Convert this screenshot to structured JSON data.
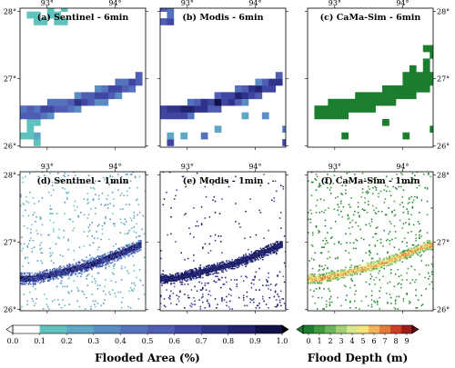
{
  "chart_data": {
    "type": "heatmap",
    "lon_ticks": [
      "93°",
      "94°"
    ],
    "lat_ticks": [
      "28°",
      "27°",
      "26°"
    ],
    "panels": [
      {
        "title": "(a) Sentinel - 6min",
        "resolution": "6min",
        "variable": "Flooded Area (%)"
      },
      {
        "title": "(b) Modis - 6min",
        "resolution": "6min",
        "variable": "Flooded Area (%)"
      },
      {
        "title": "(c) CaMa-Sim - 6min",
        "resolution": "6min",
        "variable": "Flood Depth (m)"
      },
      {
        "title": "(d) Sentinel - 1min",
        "resolution": "1min",
        "variable": "Flooded Area (%)"
      },
      {
        "title": "(e) Modis - 1min",
        "resolution": "1min",
        "variable": "Flooded Area (%)"
      },
      {
        "title": "(f) CaMa-Sim - 1min",
        "resolution": "1min",
        "variable": "Flood Depth (m)"
      }
    ],
    "colorbars": [
      {
        "label": "Flooded Area (%)",
        "ticks": [
          "0.0",
          "0.1",
          "0.2",
          "0.3",
          "0.4",
          "0.5",
          "0.6",
          "0.7",
          "0.8",
          "0.9",
          "1.0"
        ],
        "range": [
          0.0,
          1.0
        ],
        "colors": [
          "#ffffff",
          "#5fc2bd",
          "#5fa7c4",
          "#5a8dc3",
          "#5573bd",
          "#4f5db3",
          "#3f45a0",
          "#2f338a",
          "#22226f",
          "#11114a"
        ]
      },
      {
        "label": "Flood Depth (m)",
        "ticks": [
          "0",
          "1",
          "2",
          "3",
          "4",
          "5",
          "6",
          "7",
          "8",
          "9"
        ],
        "range": [
          0,
          9
        ],
        "colors": [
          "#1b7e2e",
          "#3f9b3d",
          "#6db55a",
          "#a4cf74",
          "#d7e88f",
          "#f6e47a",
          "#f2b45b",
          "#e47b3a",
          "#cc3e26",
          "#9e1d1b"
        ]
      }
    ],
    "river_channel": {
      "lon": [
        92.8,
        93.0,
        93.2,
        93.4,
        93.6,
        93.8,
        94.0,
        94.2,
        94.35
      ],
      "lat": [
        26.45,
        26.5,
        26.55,
        26.6,
        26.65,
        26.72,
        26.8,
        26.88,
        26.95
      ]
    }
  }
}
